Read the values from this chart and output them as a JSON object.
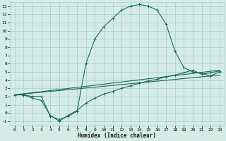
{
  "xlabel": "Humidex (Indice chaleur)",
  "xlim": [
    -0.5,
    23.5
  ],
  "ylim": [
    -1.5,
    13.5
  ],
  "yticks": [
    -1,
    0,
    1,
    2,
    3,
    4,
    5,
    6,
    7,
    8,
    9,
    10,
    11,
    12,
    13
  ],
  "xticks": [
    0,
    1,
    2,
    3,
    4,
    5,
    6,
    7,
    8,
    9,
    10,
    11,
    12,
    13,
    14,
    15,
    16,
    17,
    18,
    19,
    20,
    21,
    22,
    23
  ],
  "bg_color": "#d5ece6",
  "grid_color": "#a8cec7",
  "line_color": "#1a6b58",
  "curve1_x": [
    0,
    1,
    2,
    3,
    4,
    5,
    6,
    7,
    8,
    9,
    10,
    11,
    12,
    13,
    14,
    15,
    16,
    17,
    18,
    19,
    20,
    21,
    22,
    23
  ],
  "curve1_y": [
    2.2,
    2.2,
    2.0,
    2.0,
    -0.4,
    -0.8,
    -0.4,
    0.2,
    6.0,
    9.0,
    10.5,
    11.5,
    12.5,
    13.0,
    13.2,
    13.0,
    12.5,
    10.8,
    7.5,
    5.5,
    5.0,
    4.8,
    4.5,
    5.0
  ],
  "curve2_x": [
    0,
    1,
    2,
    3,
    4,
    5,
    6,
    7,
    8,
    9,
    10,
    11,
    12,
    13,
    14,
    15,
    16,
    17,
    18,
    19,
    20,
    21,
    22,
    23
  ],
  "curve2_y": [
    2.2,
    2.2,
    1.8,
    1.5,
    -0.3,
    -1.0,
    -0.3,
    0.3,
    1.2,
    1.8,
    2.3,
    2.6,
    3.0,
    3.3,
    3.6,
    3.9,
    4.1,
    4.4,
    4.6,
    4.9,
    5.2,
    4.7,
    4.9,
    5.1
  ],
  "line3_x": [
    0,
    23
  ],
  "line3_y": [
    2.2,
    5.2
  ],
  "line4_x": [
    0,
    23
  ],
  "line4_y": [
    2.2,
    4.6
  ]
}
